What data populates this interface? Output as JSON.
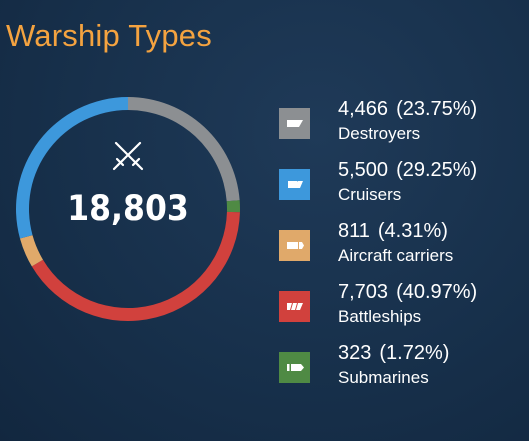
{
  "title": "Warship Types",
  "total": "18,803",
  "icons": {
    "center": "crossed-swords-icon"
  },
  "chart_data": {
    "type": "pie",
    "variant": "donut",
    "title": "Warship Types",
    "total": 18803,
    "categories": [
      "Destroyers",
      "Cruisers",
      "Aircraft carriers",
      "Battleships",
      "Submarines"
    ],
    "values": [
      4466,
      5500,
      811,
      7703,
      323
    ],
    "percents": [
      23.75,
      29.25,
      4.31,
      40.97,
      1.72
    ],
    "colors": [
      "#8c8f92",
      "#3d98dc",
      "#e0a96a",
      "#d1413d",
      "#4f8a44"
    ]
  },
  "legend": [
    {
      "value": "4,466",
      "percent": "(23.75%)",
      "label": "Destroyers",
      "color": "#8c8f92",
      "icon": "destroyer-icon"
    },
    {
      "value": "5,500",
      "percent": "(29.25%)",
      "label": "Cruisers",
      "color": "#3d98dc",
      "icon": "cruiser-icon"
    },
    {
      "value": "811",
      "percent": "(4.31%)",
      "label": "Aircraft carriers",
      "color": "#e0a96a",
      "icon": "aircraft-carrier-icon"
    },
    {
      "value": "7,703",
      "percent": "(40.97%)",
      "label": "Battleships",
      "color": "#d1413d",
      "icon": "battleship-icon"
    },
    {
      "value": "323",
      "percent": "(1.72%)",
      "label": "Submarines",
      "color": "#4f8a44",
      "icon": "submarine-icon"
    }
  ]
}
